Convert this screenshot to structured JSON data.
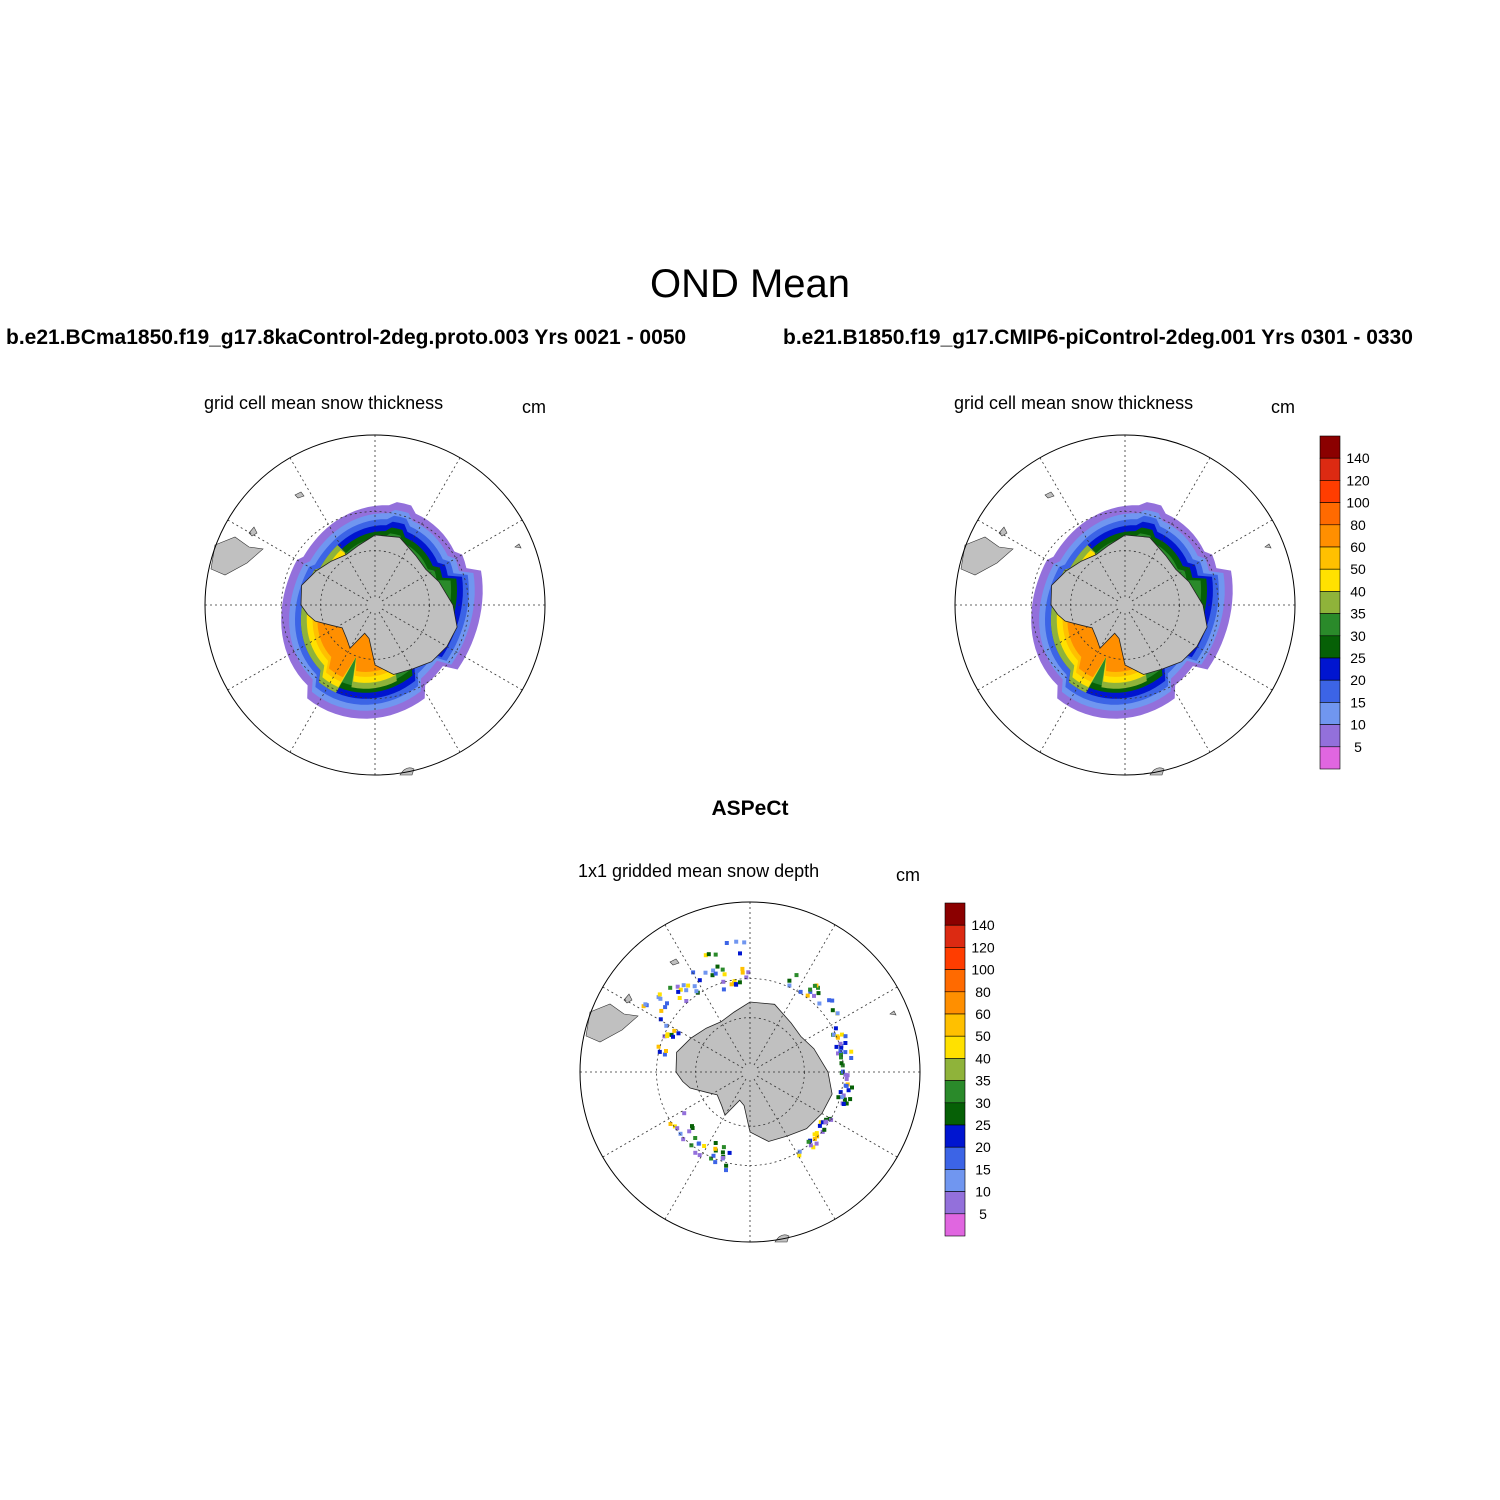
{
  "figure": {
    "title": "OND Mean",
    "case_left": "b.e21.BCma1850.f19_g17.8kaControl-2deg.proto.003  Yrs 0021 - 0050",
    "case_right": "b.e21.B1850.f19_g17.CMIP6-piControl-2deg.001  Yrs 0301 - 0330",
    "obs_title": "ASPeCt"
  },
  "panels": [
    {
      "id": "left",
      "title": "grid cell mean snow thickness",
      "units": "cm"
    },
    {
      "id": "right",
      "title": "grid cell mean snow thickness",
      "units": "cm"
    },
    {
      "id": "obs",
      "title": "1x1 gridded mean snow depth",
      "units": "cm"
    }
  ],
  "colorbar": {
    "labels": [
      "140",
      "120",
      "100",
      "80",
      "60",
      "50",
      "40",
      "35",
      "30",
      "25",
      "20",
      "15",
      "10",
      "5"
    ],
    "colors": [
      "#8b0000",
      "#dc2a12",
      "#ff3d00",
      "#ff6a00",
      "#ff8f00",
      "#ffc000",
      "#ffe100",
      "#8fb33a",
      "#2a8a2a",
      "#066006",
      "#0015d0",
      "#3c64e6",
      "#7096f0",
      "#9370db",
      "#e066e0"
    ]
  },
  "chart_data": {
    "type": "polar-stereographic-map",
    "variable": "snow thickness",
    "units": "cm",
    "levels": [
      5,
      10,
      15,
      20,
      25,
      30,
      35,
      40,
      50,
      60,
      80,
      100,
      120,
      140
    ],
    "hemisphere": "south",
    "graticule": {
      "meridian_step_deg": 30,
      "parallels": true
    },
    "land_color": "#c0c0c0"
  }
}
